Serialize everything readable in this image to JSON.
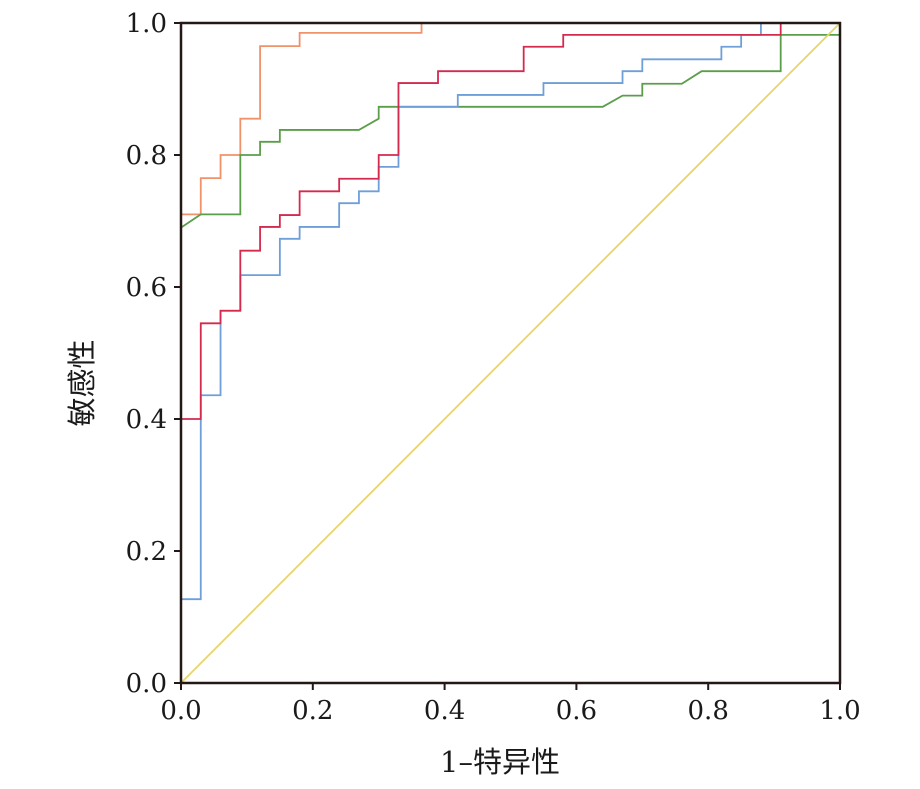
{
  "chart_data": {
    "type": "line",
    "title": "",
    "xlabel": "1–特异性",
    "ylabel": "敏感性",
    "xlim": [
      0,
      1
    ],
    "ylim": [
      0,
      1
    ],
    "x_ticks": [
      "0.0",
      "0.2",
      "0.4",
      "0.6",
      "0.8",
      "1.0"
    ],
    "y_ticks": [
      "0.0",
      "0.2",
      "0.4",
      "0.6",
      "0.8",
      "1.0"
    ],
    "grid": false,
    "legend": "none",
    "series": [
      {
        "color": "#f0926a",
        "points": [
          [
            0,
            0.71
          ],
          [
            0.03,
            0.71
          ],
          [
            0.03,
            0.765
          ],
          [
            0.06,
            0.765
          ],
          [
            0.06,
            0.8
          ],
          [
            0.09,
            0.8
          ],
          [
            0.09,
            0.855
          ],
          [
            0.12,
            0.855
          ],
          [
            0.12,
            0.965
          ],
          [
            0.18,
            0.965
          ],
          [
            0.18,
            0.985
          ],
          [
            0.365,
            0.985
          ],
          [
            0.365,
            1.0
          ]
        ]
      },
      {
        "color": "#5a9e4a",
        "points": [
          [
            0,
            0.69
          ],
          [
            0.03,
            0.71
          ],
          [
            0.09,
            0.71
          ],
          [
            0.09,
            0.8
          ],
          [
            0.12,
            0.8
          ],
          [
            0.12,
            0.82
          ],
          [
            0.15,
            0.82
          ],
          [
            0.15,
            0.838
          ],
          [
            0.27,
            0.838
          ],
          [
            0.3,
            0.855
          ],
          [
            0.3,
            0.873
          ],
          [
            0.64,
            0.873
          ],
          [
            0.67,
            0.89
          ],
          [
            0.7,
            0.89
          ],
          [
            0.7,
            0.908
          ],
          [
            0.76,
            0.908
          ],
          [
            0.79,
            0.927
          ],
          [
            0.91,
            0.927
          ],
          [
            0.91,
            0.982
          ],
          [
            1.0,
            0.982
          ]
        ]
      },
      {
        "color": "#6e9fd8",
        "points": [
          [
            0,
            0.127
          ],
          [
            0.03,
            0.127
          ],
          [
            0.03,
            0.4
          ],
          [
            0.03,
            0.436
          ],
          [
            0.06,
            0.436
          ],
          [
            0.06,
            0.564
          ],
          [
            0.09,
            0.564
          ],
          [
            0.09,
            0.618
          ],
          [
            0.15,
            0.618
          ],
          [
            0.15,
            0.673
          ],
          [
            0.18,
            0.673
          ],
          [
            0.18,
            0.691
          ],
          [
            0.24,
            0.691
          ],
          [
            0.24,
            0.727
          ],
          [
            0.27,
            0.727
          ],
          [
            0.27,
            0.745
          ],
          [
            0.3,
            0.745
          ],
          [
            0.3,
            0.782
          ],
          [
            0.33,
            0.782
          ],
          [
            0.33,
            0.873
          ],
          [
            0.42,
            0.873
          ],
          [
            0.42,
            0.891
          ],
          [
            0.55,
            0.891
          ],
          [
            0.55,
            0.909
          ],
          [
            0.67,
            0.909
          ],
          [
            0.67,
            0.927
          ],
          [
            0.7,
            0.927
          ],
          [
            0.7,
            0.945
          ],
          [
            0.82,
            0.945
          ],
          [
            0.82,
            0.964
          ],
          [
            0.85,
            0.964
          ],
          [
            0.85,
            0.982
          ],
          [
            0.88,
            0.982
          ],
          [
            0.88,
            1.0
          ],
          [
            1.0,
            1.0
          ]
        ]
      },
      {
        "color": "#d42a4e",
        "points": [
          [
            0,
            0.4
          ],
          [
            0.03,
            0.4
          ],
          [
            0.03,
            0.545
          ],
          [
            0.06,
            0.545
          ],
          [
            0.06,
            0.564
          ],
          [
            0.09,
            0.564
          ],
          [
            0.09,
            0.655
          ],
          [
            0.12,
            0.655
          ],
          [
            0.12,
            0.691
          ],
          [
            0.15,
            0.691
          ],
          [
            0.15,
            0.709
          ],
          [
            0.18,
            0.709
          ],
          [
            0.18,
            0.745
          ],
          [
            0.24,
            0.745
          ],
          [
            0.24,
            0.764
          ],
          [
            0.3,
            0.764
          ],
          [
            0.3,
            0.8
          ],
          [
            0.33,
            0.8
          ],
          [
            0.33,
            0.909
          ],
          [
            0.39,
            0.909
          ],
          [
            0.39,
            0.927
          ],
          [
            0.52,
            0.927
          ],
          [
            0.52,
            0.964
          ],
          [
            0.58,
            0.964
          ],
          [
            0.58,
            0.982
          ],
          [
            0.91,
            0.982
          ],
          [
            0.91,
            1.0
          ],
          [
            1.0,
            1.0
          ]
        ]
      },
      {
        "color": "#e8d56a",
        "points": [
          [
            0,
            0
          ],
          [
            1,
            1
          ]
        ]
      }
    ]
  }
}
